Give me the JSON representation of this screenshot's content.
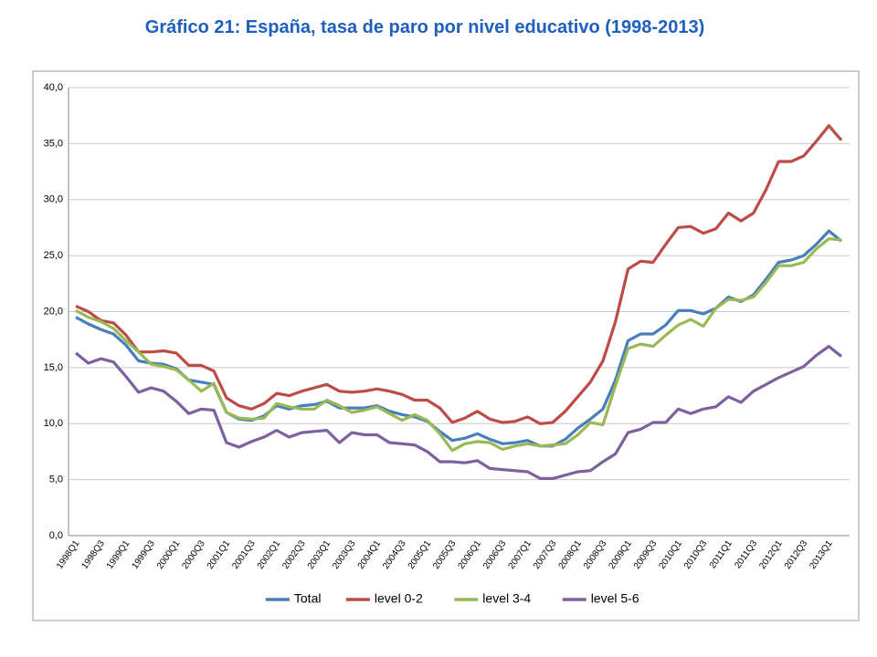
{
  "chart_data": {
    "type": "line",
    "title": "Gráfico 21: España, tasa de paro por nivel educativo (1998-2013)",
    "categories": [
      "1998Q1",
      null,
      "1998Q3",
      null,
      "1999Q1",
      null,
      "1999Q3",
      null,
      "2000Q1",
      null,
      "2000Q3",
      null,
      "2001Q1",
      null,
      "2001Q3",
      null,
      "2002Q1",
      null,
      "2002Q3",
      null,
      "2003Q1",
      null,
      "2003Q3",
      null,
      "2004Q1",
      null,
      "2004Q3",
      null,
      "2005Q1",
      null,
      "2005Q3",
      null,
      "2006Q1",
      null,
      "2006Q3",
      null,
      "2007Q1",
      null,
      "2007Q3",
      null,
      "2008Q1",
      null,
      "2008Q3",
      null,
      "2009Q1",
      null,
      "2009Q3",
      null,
      "2010Q1",
      null,
      "2010Q3",
      null,
      "2011Q1",
      null,
      "2011Q3",
      null,
      "2012Q1",
      null,
      "2012Q3",
      null,
      "2013Q1",
      null
    ],
    "series": [
      {
        "name": "Total",
        "color": "#4a7ebb",
        "values": [
          19.5,
          18.9,
          18.4,
          18.0,
          17.0,
          15.6,
          15.4,
          15.3,
          14.9,
          13.9,
          13.7,
          13.5,
          11.0,
          10.4,
          10.3,
          10.7,
          11.6,
          11.3,
          11.6,
          11.7,
          12.0,
          11.4,
          11.4,
          11.4,
          11.6,
          11.1,
          10.8,
          10.6,
          10.2,
          9.3,
          8.5,
          8.7,
          9.1,
          8.6,
          8.2,
          8.3,
          8.5,
          8.0,
          8.0,
          8.6,
          9.6,
          10.4,
          11.3,
          13.9,
          17.4,
          18.0,
          18.0,
          18.8,
          20.1,
          20.1,
          19.8,
          20.3,
          21.3,
          20.9,
          21.5,
          22.9,
          24.4,
          24.6,
          25.0,
          26.0,
          27.2,
          26.3
        ]
      },
      {
        "name": "level 0-2",
        "color": "#be4b48",
        "values": [
          20.5,
          20.0,
          19.2,
          19.0,
          17.9,
          16.4,
          16.4,
          16.5,
          16.3,
          15.2,
          15.2,
          14.7,
          12.3,
          11.6,
          11.3,
          11.8,
          12.7,
          12.5,
          12.9,
          13.2,
          13.5,
          12.9,
          12.8,
          12.9,
          13.1,
          12.9,
          12.6,
          12.1,
          12.1,
          11.4,
          10.1,
          10.5,
          11.1,
          10.4,
          10.1,
          10.2,
          10.6,
          10.0,
          10.1,
          11.1,
          12.4,
          13.7,
          15.6,
          19.1,
          23.8,
          24.5,
          24.4,
          26.0,
          27.5,
          27.6,
          27.0,
          27.4,
          28.8,
          28.1,
          28.8,
          30.9,
          33.4,
          33.4,
          33.9,
          35.2,
          36.6,
          35.3
        ]
      },
      {
        "name": "level 3-4",
        "color": "#98b954",
        "values": [
          20.1,
          19.5,
          19.1,
          18.5,
          17.4,
          16.4,
          15.3,
          15.1,
          14.8,
          13.9,
          12.9,
          13.6,
          11.0,
          10.5,
          10.4,
          10.5,
          11.8,
          11.5,
          11.3,
          11.3,
          12.1,
          11.6,
          11.0,
          11.2,
          11.5,
          10.9,
          10.3,
          10.8,
          10.3,
          9.1,
          7.6,
          8.2,
          8.4,
          8.3,
          7.7,
          8.0,
          8.2,
          8.0,
          8.1,
          8.2,
          9.0,
          10.1,
          9.9,
          13.4,
          16.7,
          17.1,
          16.9,
          17.9,
          18.8,
          19.3,
          18.7,
          20.3,
          21.1,
          21.0,
          21.3,
          22.6,
          24.1,
          24.1,
          24.4,
          25.6,
          26.5,
          26.4
        ]
      },
      {
        "name": "level 5-6",
        "color": "#7d60a0",
        "values": [
          16.3,
          15.4,
          15.8,
          15.5,
          14.2,
          12.8,
          13.2,
          12.9,
          12.0,
          10.9,
          11.3,
          11.2,
          8.3,
          7.9,
          8.4,
          8.8,
          9.4,
          8.8,
          9.2,
          9.3,
          9.4,
          8.3,
          9.2,
          9.0,
          9.0,
          8.3,
          8.2,
          8.1,
          7.5,
          6.6,
          6.6,
          6.5,
          6.7,
          6.0,
          5.9,
          5.8,
          5.7,
          5.1,
          5.1,
          5.4,
          5.7,
          5.8,
          6.6,
          7.3,
          9.2,
          9.5,
          10.1,
          10.1,
          11.3,
          10.9,
          11.3,
          11.5,
          12.4,
          11.9,
          12.9,
          13.5,
          14.1,
          14.6,
          15.1,
          16.1,
          16.9,
          16.0
        ]
      }
    ],
    "ylim": [
      0,
      40
    ],
    "yticks": [
      {
        "value": 0,
        "label": "0,0"
      },
      {
        "value": 5,
        "label": "5,0"
      },
      {
        "value": 10,
        "label": "10,0"
      },
      {
        "value": 15,
        "label": "15,0"
      },
      {
        "value": 20,
        "label": "20,0"
      },
      {
        "value": 25,
        "label": "25,0"
      },
      {
        "value": 30,
        "label": "30,0"
      },
      {
        "value": 35,
        "label": "35,0"
      },
      {
        "value": 40,
        "label": "40,0"
      }
    ],
    "grid": true,
    "legend": "bottom"
  }
}
